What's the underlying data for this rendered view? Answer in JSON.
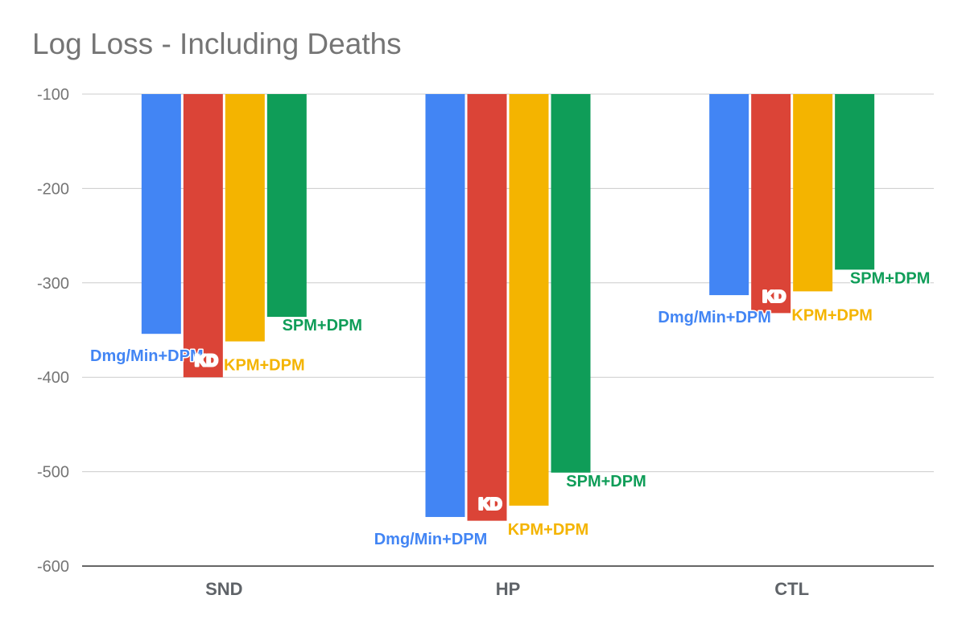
{
  "chart_data": {
    "type": "bar",
    "title": "Log Loss - Including Deaths",
    "categories": [
      "SND",
      "HP",
      "CTL"
    ],
    "series": [
      {
        "name": "Dmg/Min+DPM",
        "color": "#4285f4",
        "values": [
          -354,
          -548,
          -313
        ]
      },
      {
        "name": "KD",
        "color": "#db4437",
        "values": [
          -400,
          -552,
          -332
        ]
      },
      {
        "name": "KPM+DPM",
        "color": "#f4b400",
        "values": [
          -362,
          -536,
          -309
        ]
      },
      {
        "name": "SPM+DPM",
        "color": "#0f9d58",
        "values": [
          -336,
          -501,
          -286
        ]
      }
    ],
    "ylim": [
      -600,
      -100
    ],
    "yticks": [
      -100,
      -200,
      -300,
      -400,
      -500,
      -600
    ],
    "grid": true,
    "bars_hang_from": -100,
    "data_labels": "series name shown at each bar end"
  }
}
